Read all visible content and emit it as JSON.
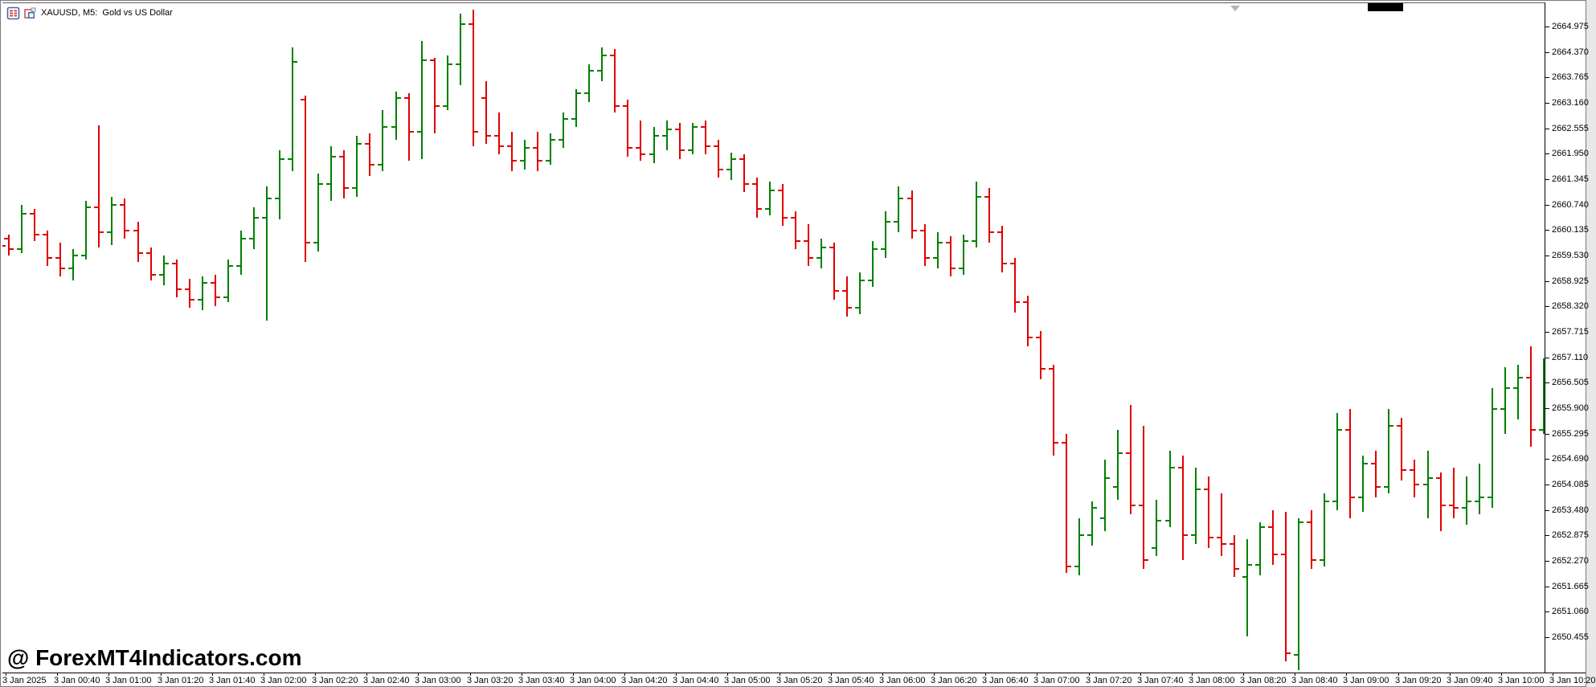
{
  "window": {
    "title": "XAUUSD, M5:  Gold vs US Dollar",
    "icons": [
      "market-watch-icon",
      "new-chart-icon"
    ]
  },
  "colors": {
    "background": "#ffffff",
    "up_color": "#008000",
    "down_color": "#e00000",
    "axis_text": "#000000",
    "border": "#7a7a7a",
    "watermark": "#000000",
    "scroll_marker": "#b4b4b4",
    "corner_box": "#000000"
  },
  "watermark": {
    "text": "@ ForexMT4Indicators.com"
  },
  "chart_data": {
    "type": "ohlc_bar",
    "symbol": "XAUUSD",
    "period": "M5",
    "description": "Gold vs US Dollar",
    "legend_position": "none",
    "grid": false,
    "y_axis": {
      "side": "right",
      "top_price": 2664.975,
      "step": 0.605,
      "labels": [
        "2664.975",
        "2664.370",
        "2663.765",
        "2663.160",
        "2662.555",
        "2661.950",
        "2661.345",
        "2660.740",
        "2660.135",
        "2659.530",
        "2658.925",
        "2658.320",
        "2657.715",
        "2657.110",
        "2656.505",
        "2655.900",
        "2655.295",
        "2654.690",
        "2654.085",
        "2653.480",
        "2652.875",
        "2652.270",
        "2651.665",
        "2651.060",
        "2650.455"
      ]
    },
    "x_axis": {
      "side": "bottom",
      "labels": [
        "3 Jan 2025",
        "3 Jan 00:40",
        "3 Jan 01:00",
        "3 Jan 01:20",
        "3 Jan 01:40",
        "3 Jan 02:00",
        "3 Jan 02:20",
        "3 Jan 02:40",
        "3 Jan 03:00",
        "3 Jan 03:20",
        "3 Jan 03:40",
        "3 Jan 04:00",
        "3 Jan 04:20",
        "3 Jan 04:40",
        "3 Jan 05:00",
        "3 Jan 05:20",
        "3 Jan 05:40",
        "3 Jan 06:00",
        "3 Jan 06:20",
        "3 Jan 06:40",
        "3 Jan 07:00",
        "3 Jan 07:20",
        "3 Jan 07:40",
        "3 Jan 08:00",
        "3 Jan 08:20",
        "3 Jan 08:40",
        "3 Jan 09:00",
        "3 Jan 09:20",
        "3 Jan 09:40",
        "3 Jan 10:00",
        "3 Jan 10:20"
      ]
    },
    "start_time": "00:25",
    "interval_min": 5,
    "bar_format": [
      "open",
      "high",
      "low",
      "close"
    ],
    "edge_fragment_price": 2659.78,
    "bars": [
      [
        2659.95,
        2660.05,
        2659.55,
        2659.7
      ],
      [
        2659.7,
        2660.75,
        2659.6,
        2660.55
      ],
      [
        2660.55,
        2660.65,
        2659.9,
        2660.05
      ],
      [
        2660.05,
        2660.15,
        2659.3,
        2659.5
      ],
      [
        2659.5,
        2659.85,
        2659.05,
        2659.25
      ],
      [
        2659.25,
        2659.7,
        2658.95,
        2659.55
      ],
      [
        2659.55,
        2660.85,
        2659.45,
        2660.7
      ],
      [
        2660.7,
        2662.65,
        2659.75,
        2660.1
      ],
      [
        2660.1,
        2660.95,
        2659.8,
        2660.75
      ],
      [
        2660.75,
        2660.9,
        2659.95,
        2660.15
      ],
      [
        2660.15,
        2660.35,
        2659.4,
        2659.6
      ],
      [
        2659.6,
        2659.75,
        2658.95,
        2659.1
      ],
      [
        2659.1,
        2659.55,
        2658.85,
        2659.35
      ],
      [
        2659.35,
        2659.45,
        2658.55,
        2658.75
      ],
      [
        2658.75,
        2659.0,
        2658.3,
        2658.5
      ],
      [
        2658.5,
        2659.05,
        2658.25,
        2658.9
      ],
      [
        2658.9,
        2659.1,
        2658.35,
        2658.55
      ],
      [
        2658.55,
        2659.45,
        2658.45,
        2659.3
      ],
      [
        2659.3,
        2660.15,
        2659.1,
        2659.95
      ],
      [
        2659.95,
        2660.7,
        2659.7,
        2660.45
      ],
      [
        2660.45,
        2661.2,
        2658.0,
        2660.9
      ],
      [
        2660.9,
        2662.05,
        2660.4,
        2661.85
      ],
      [
        2661.85,
        2664.5,
        2661.55,
        2664.15
      ],
      [
        2663.25,
        2663.35,
        2659.4,
        2659.85
      ],
      [
        2659.85,
        2661.5,
        2659.65,
        2661.25
      ],
      [
        2661.25,
        2662.15,
        2660.85,
        2661.9
      ],
      [
        2661.9,
        2662.05,
        2660.9,
        2661.15
      ],
      [
        2661.15,
        2662.4,
        2660.95,
        2662.2
      ],
      [
        2662.2,
        2662.45,
        2661.45,
        2661.7
      ],
      [
        2661.7,
        2663.0,
        2661.55,
        2662.6
      ],
      [
        2662.6,
        2663.45,
        2662.3,
        2663.3
      ],
      [
        2663.3,
        2663.4,
        2661.8,
        2662.5
      ],
      [
        2662.5,
        2664.65,
        2661.85,
        2664.2
      ],
      [
        2664.2,
        2664.25,
        2662.45,
        2663.1
      ],
      [
        2663.1,
        2664.3,
        2663.0,
        2664.1
      ],
      [
        2664.1,
        2665.3,
        2663.6,
        2665.05
      ],
      [
        2665.05,
        2665.4,
        2662.15,
        2662.5
      ],
      [
        2663.3,
        2663.7,
        2662.2,
        2662.4
      ],
      [
        2662.4,
        2662.95,
        2661.95,
        2662.15
      ],
      [
        2662.15,
        2662.5,
        2661.55,
        2661.8
      ],
      [
        2661.8,
        2662.3,
        2661.6,
        2662.1
      ],
      [
        2662.1,
        2662.5,
        2661.55,
        2661.8
      ],
      [
        2661.8,
        2662.45,
        2661.7,
        2662.3
      ],
      [
        2662.3,
        2662.95,
        2662.1,
        2662.8
      ],
      [
        2662.8,
        2663.5,
        2662.6,
        2663.4
      ],
      [
        2663.4,
        2664.1,
        2663.2,
        2663.95
      ],
      [
        2663.95,
        2664.5,
        2663.7,
        2664.3
      ],
      [
        2664.3,
        2664.45,
        2662.95,
        2663.1
      ],
      [
        2663.1,
        2663.25,
        2661.9,
        2662.1
      ],
      [
        2662.1,
        2662.75,
        2661.8,
        2661.95
      ],
      [
        2661.95,
        2662.6,
        2661.75,
        2662.4
      ],
      [
        2662.4,
        2662.75,
        2662.05,
        2662.55
      ],
      [
        2662.55,
        2662.7,
        2661.85,
        2662.05
      ],
      [
        2662.05,
        2662.7,
        2661.95,
        2662.6
      ],
      [
        2662.6,
        2662.75,
        2661.95,
        2662.15
      ],
      [
        2662.15,
        2662.3,
        2661.4,
        2661.6
      ],
      [
        2661.6,
        2662.0,
        2661.35,
        2661.85
      ],
      [
        2661.85,
        2661.95,
        2661.05,
        2661.25
      ],
      [
        2661.25,
        2661.4,
        2660.45,
        2660.65
      ],
      [
        2660.65,
        2661.3,
        2660.5,
        2661.1
      ],
      [
        2661.1,
        2661.25,
        2660.25,
        2660.45
      ],
      [
        2660.45,
        2660.6,
        2659.7,
        2659.9
      ],
      [
        2659.9,
        2660.3,
        2659.3,
        2659.5
      ],
      [
        2659.5,
        2659.95,
        2659.25,
        2659.75
      ],
      [
        2659.75,
        2659.85,
        2658.5,
        2658.7
      ],
      [
        2658.7,
        2659.05,
        2658.1,
        2658.3
      ],
      [
        2658.3,
        2659.15,
        2658.15,
        2658.95
      ],
      [
        2658.95,
        2659.9,
        2658.8,
        2659.7
      ],
      [
        2659.7,
        2660.6,
        2659.5,
        2660.35
      ],
      [
        2660.35,
        2661.2,
        2660.1,
        2660.9
      ],
      [
        2660.9,
        2661.1,
        2659.95,
        2660.15
      ],
      [
        2660.15,
        2660.3,
        2659.3,
        2659.5
      ],
      [
        2659.5,
        2660.1,
        2659.25,
        2659.85
      ],
      [
        2659.85,
        2660.0,
        2659.05,
        2659.25
      ],
      [
        2659.25,
        2660.05,
        2659.1,
        2659.9
      ],
      [
        2659.9,
        2661.3,
        2659.75,
        2660.95
      ],
      [
        2660.95,
        2661.15,
        2659.85,
        2660.1
      ],
      [
        2660.1,
        2660.25,
        2659.15,
        2659.35
      ],
      [
        2659.35,
        2659.5,
        2658.2,
        2658.45
      ],
      [
        2658.45,
        2658.6,
        2657.4,
        2657.6
      ],
      [
        2657.6,
        2657.75,
        2656.6,
        2656.85
      ],
      [
        2656.85,
        2656.95,
        2654.8,
        2655.1
      ],
      [
        2655.1,
        2655.3,
        2652.0,
        2652.15
      ],
      [
        2652.15,
        2653.3,
        2651.95,
        2652.9
      ],
      [
        2652.9,
        2653.7,
        2652.65,
        2653.55
      ],
      [
        2653.3,
        2654.7,
        2653.0,
        2654.25
      ],
      [
        2654.05,
        2655.4,
        2653.75,
        2654.85
      ],
      [
        2654.85,
        2656.0,
        2653.4,
        2653.6
      ],
      [
        2653.6,
        2655.5,
        2652.1,
        2652.3
      ],
      [
        2652.6,
        2653.75,
        2652.4,
        2653.25
      ],
      [
        2653.25,
        2654.9,
        2653.1,
        2654.5
      ],
      [
        2654.5,
        2654.8,
        2652.3,
        2652.9
      ],
      [
        2652.9,
        2654.5,
        2652.7,
        2654.0
      ],
      [
        2654.0,
        2654.3,
        2652.6,
        2652.85
      ],
      [
        2652.85,
        2653.9,
        2652.4,
        2652.7
      ],
      [
        2652.7,
        2652.9,
        2651.9,
        2652.1
      ],
      [
        2651.9,
        2652.8,
        2650.5,
        2652.2
      ],
      [
        2652.2,
        2653.2,
        2651.95,
        2653.1
      ],
      [
        2653.1,
        2653.5,
        2652.2,
        2652.45
      ],
      [
        2652.45,
        2653.45,
        2649.9,
        2650.1
      ],
      [
        2650.05,
        2653.3,
        2649.7,
        2653.2
      ],
      [
        2653.2,
        2653.5,
        2652.1,
        2652.3
      ],
      [
        2652.3,
        2653.9,
        2652.15,
        2653.7
      ],
      [
        2653.7,
        2655.8,
        2653.5,
        2655.4
      ],
      [
        2655.4,
        2655.9,
        2653.3,
        2653.8
      ],
      [
        2653.8,
        2654.8,
        2653.45,
        2654.6
      ],
      [
        2654.6,
        2654.9,
        2653.8,
        2654.05
      ],
      [
        2654.05,
        2655.9,
        2653.9,
        2655.5
      ],
      [
        2655.5,
        2655.7,
        2654.2,
        2654.45
      ],
      [
        2654.45,
        2654.7,
        2653.8,
        2654.1
      ],
      [
        2654.1,
        2654.9,
        2653.3,
        2654.25
      ],
      [
        2654.25,
        2654.4,
        2653.0,
        2653.6
      ],
      [
        2653.6,
        2654.5,
        2653.3,
        2653.55
      ],
      [
        2653.55,
        2654.3,
        2653.15,
        2653.7
      ],
      [
        2653.7,
        2654.6,
        2653.4,
        2653.8
      ],
      [
        2653.8,
        2656.4,
        2653.55,
        2655.9
      ],
      [
        2655.9,
        2656.9,
        2655.3,
        2656.4
      ],
      [
        2656.4,
        2656.95,
        2655.65,
        2656.65
      ],
      [
        2656.65,
        2657.4,
        2655.0,
        2655.4
      ],
      [
        2655.4,
        2657.1,
        2655.3,
        2656.6
      ]
    ]
  }
}
